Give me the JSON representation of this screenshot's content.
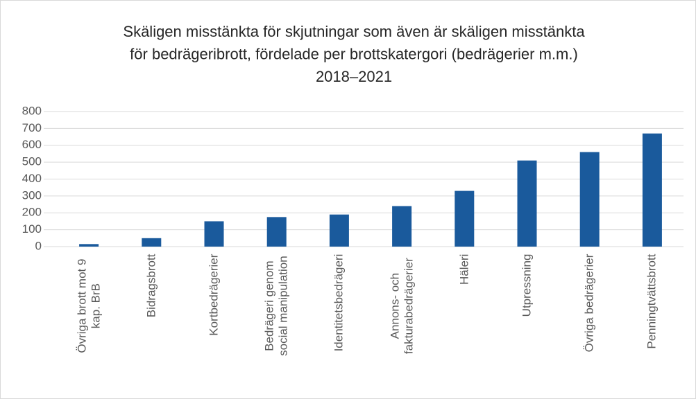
{
  "chart_data": {
    "type": "bar",
    "title": [
      "Skäligen misstänkta för skjutningar som även är skäligen misstänkta",
      "för bedrägeribrott, fördelade per brottskatergori (bedrägerier m.m.)",
      "2018–2021"
    ],
    "categories": [
      "Övriga brott mot 9 kap. BrB",
      "Bidragsbrott",
      "Kortbedrägerier",
      "Bedrägeri genom social manipulation",
      "Identitetsbedrägeri",
      "Annons- och fakturabedrägerier",
      "Häleri",
      "Utpressning",
      "Övriga bedrägerier",
      "Penningtvättsbrott"
    ],
    "values": [
      15,
      50,
      150,
      175,
      190,
      240,
      330,
      510,
      560,
      670
    ],
    "color": "#1a5a9c",
    "ylim": [
      0,
      800
    ],
    "yticks": [
      0,
      100,
      200,
      300,
      400,
      500,
      600,
      700,
      800
    ],
    "grid": true
  }
}
